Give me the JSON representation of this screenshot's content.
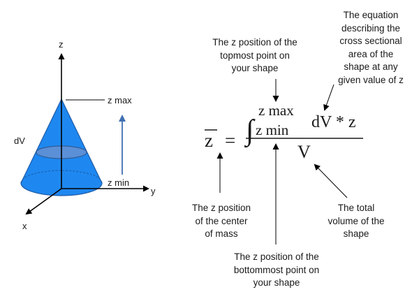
{
  "figure": {
    "axes": {
      "z": "z",
      "y": "y",
      "x": "x"
    },
    "labels": {
      "z_max": "z max",
      "z_min": "z min",
      "dV": "dV"
    },
    "colors": {
      "cone": "#1e88f0",
      "slice": "#5b8fd6",
      "arrow": "#3f6fb3",
      "ink": "#000000"
    }
  },
  "equation": {
    "lhs": "z",
    "upper_limit": "z max",
    "lower_limit": "z min",
    "integrand": "dV * z",
    "denominator": "V"
  },
  "annotations": {
    "top_limit": [
      "The z position of the",
      "topmost point on",
      "your shape"
    ],
    "integrand": [
      "The equation",
      "describing the",
      "cross sectional",
      "area of the",
      "shape at any",
      "given value of z"
    ],
    "center_of_mass": [
      "The z position",
      "of the center",
      "of mass"
    ],
    "total_volume": [
      "The total",
      "volume of the",
      "shape"
    ],
    "bottom_limit": [
      "The z position of the",
      "bottommost point on",
      "your shape"
    ]
  }
}
